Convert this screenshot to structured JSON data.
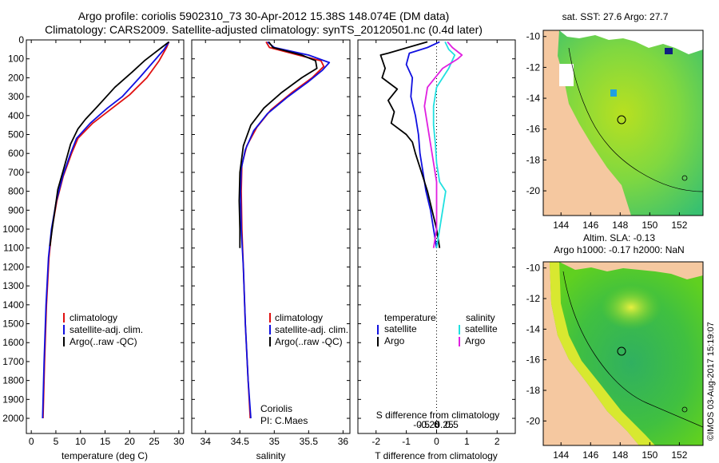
{
  "header": {
    "line1": "Argo profile: coriolis 5902310_73 30-Apr-2012 15.38S 148.074E (DM data)",
    "line2": "Climatology: CARS2009. Satellite-adjusted climatology: synTS_20120501.nc (0.4d later)"
  },
  "colors": {
    "clim": "#e01010",
    "sat": "#1010e0",
    "argo": "#000000",
    "sat_sal": "#20e0e0",
    "argo_sal": "#e020e0",
    "land": "#f5c8a0"
  },
  "depth_axis": {
    "ticks": [
      "0",
      "100",
      "200",
      "300",
      "400",
      "500",
      "600",
      "700",
      "800",
      "900",
      "1000",
      "1100",
      "1200",
      "1300",
      "1400",
      "1500",
      "1600",
      "1700",
      "1800",
      "1900",
      "2000"
    ]
  },
  "chart_data": [
    {
      "type": "line",
      "id": "temperature",
      "xlabel": "temperature (deg C)",
      "ylabel": "depth",
      "xlim": [
        -1,
        31
      ],
      "ylim": [
        0,
        2080
      ],
      "xticks": [
        "0",
        "5",
        "10",
        "15",
        "20",
        "25",
        "30"
      ],
      "legend": [
        "climatology",
        "satellite-adj. clim.",
        "Argo(..raw -QC)"
      ],
      "series": [
        {
          "name": "climatology",
          "color": "#e01010",
          "points": [
            [
              28,
              10
            ],
            [
              27.5,
              40
            ],
            [
              26,
              110
            ],
            [
              23.5,
              200
            ],
            [
              20,
              290
            ],
            [
              16.5,
              360
            ],
            [
              12.5,
              440
            ],
            [
              9.5,
              520
            ],
            [
              8.2,
              600
            ],
            [
              6.5,
              720
            ],
            [
              5.2,
              850
            ],
            [
              4.2,
              1000
            ],
            [
              3.6,
              1150
            ],
            [
              3.1,
              1400
            ],
            [
              2.7,
              1700
            ],
            [
              2.4,
              2000
            ]
          ]
        },
        {
          "name": "satellite-adj. clim.",
          "color": "#1010e0",
          "points": [
            [
              28,
              10
            ],
            [
              27,
              50
            ],
            [
              25,
              110
            ],
            [
              22,
              200
            ],
            [
              18.5,
              300
            ],
            [
              15.5,
              360
            ],
            [
              12,
              440
            ],
            [
              9.2,
              520
            ],
            [
              8,
              600
            ],
            [
              6.4,
              720
            ],
            [
              5.1,
              850
            ],
            [
              4.1,
              1000
            ],
            [
              3.5,
              1150
            ],
            [
              3.0,
              1400
            ],
            [
              2.6,
              1700
            ],
            [
              2.3,
              2000
            ]
          ]
        },
        {
          "name": "Argo(..raw -QC)",
          "color": "#000000",
          "points": [
            [
              28,
              10
            ],
            [
              26.5,
              40
            ],
            [
              25,
              70
            ],
            [
              23,
              110
            ],
            [
              20.5,
              170
            ],
            [
              17,
              250
            ],
            [
              13.5,
              350
            ],
            [
              11,
              420
            ],
            [
              9.5,
              470
            ],
            [
              8,
              550
            ],
            [
              6.6,
              680
            ],
            [
              5.4,
              790
            ],
            [
              4.8,
              900
            ],
            [
              4.2,
              1010
            ],
            [
              3.8,
              1090
            ]
          ]
        }
      ]
    },
    {
      "type": "line",
      "id": "salinity",
      "xlabel": "salinity",
      "ylabel": "depth",
      "xlim": [
        33.8,
        36.1
      ],
      "ylim": [
        0,
        2080
      ],
      "xticks": [
        "34",
        "34.5",
        "35",
        "35.5",
        "36"
      ],
      "legend": [
        "climatology",
        "satellite-adj. clim.",
        "Argo(..raw -QC)"
      ],
      "annotation": [
        "Coriolis",
        "PI: C.Maes"
      ],
      "series": [
        {
          "name": "climatology",
          "color": "#e01010",
          "points": [
            [
              34.88,
              10
            ],
            [
              34.93,
              40
            ],
            [
              35.35,
              80
            ],
            [
              35.68,
              110
            ],
            [
              35.72,
              140
            ],
            [
              35.55,
              200
            ],
            [
              35.25,
              280
            ],
            [
              34.95,
              370
            ],
            [
              34.75,
              460
            ],
            [
              34.6,
              560
            ],
            [
              34.53,
              660
            ],
            [
              34.52,
              800
            ],
            [
              34.53,
              1000
            ],
            [
              34.55,
              1200
            ],
            [
              34.58,
              1500
            ],
            [
              34.62,
              1800
            ],
            [
              34.65,
              2000
            ]
          ]
        },
        {
          "name": "satellite-adj. clim.",
          "color": "#1010e0",
          "points": [
            [
              34.9,
              10
            ],
            [
              35.0,
              40
            ],
            [
              35.5,
              80
            ],
            [
              35.8,
              120
            ],
            [
              35.7,
              160
            ],
            [
              35.5,
              220
            ],
            [
              35.2,
              300
            ],
            [
              34.9,
              390
            ],
            [
              34.7,
              480
            ],
            [
              34.58,
              580
            ],
            [
              34.52,
              680
            ],
            [
              34.51,
              800
            ],
            [
              34.52,
              1000
            ],
            [
              34.55,
              1200
            ],
            [
              34.58,
              1500
            ],
            [
              34.62,
              1800
            ],
            [
              34.66,
              2000
            ]
          ]
        },
        {
          "name": "Argo(..raw -QC)",
          "color": "#000000",
          "points": [
            [
              34.92,
              10
            ],
            [
              34.98,
              40
            ],
            [
              35.4,
              80
            ],
            [
              35.6,
              110
            ],
            [
              35.62,
              150
            ],
            [
              35.4,
              200
            ],
            [
              35.1,
              280
            ],
            [
              34.85,
              360
            ],
            [
              34.66,
              450
            ],
            [
              34.55,
              560
            ],
            [
              34.5,
              700
            ],
            [
              34.49,
              850
            ],
            [
              34.5,
              1000
            ],
            [
              34.5,
              1100
            ]
          ]
        }
      ]
    },
    {
      "type": "line",
      "id": "difference",
      "xlabel": "T difference from climatology",
      "xlabel2": "S difference from climatology",
      "ylabel": "depth",
      "xlim": [
        -2.6,
        2.6
      ],
      "ylim": [
        0,
        2080
      ],
      "xticks": [
        "-2",
        "-1",
        "0",
        "1",
        "2"
      ],
      "xticks2": [
        "-0.5",
        "-0.25",
        "0",
        "0.25",
        "0.5"
      ],
      "legend": {
        "temperature_title": "temperature",
        "salinity_title": "salinity",
        "satellite": "satellite",
        "argo": "Argo"
      },
      "series": [
        {
          "name": "temperature satellite",
          "color": "#1010e0",
          "points": [
            [
              0.1,
              10
            ],
            [
              -0.3,
              40
            ],
            [
              -0.9,
              70
            ],
            [
              -1.0,
              130
            ],
            [
              -0.8,
              200
            ],
            [
              -0.85,
              300
            ],
            [
              -0.7,
              400
            ],
            [
              -0.6,
              500
            ],
            [
              -0.55,
              600
            ],
            [
              -0.45,
              700
            ],
            [
              -0.35,
              800
            ],
            [
              -0.2,
              900
            ],
            [
              -0.1,
              1000
            ],
            [
              0.0,
              1100
            ]
          ]
        },
        {
          "name": "temperature Argo",
          "color": "#000000",
          "points": [
            [
              -0.3,
              10
            ],
            [
              -1.6,
              70
            ],
            [
              -1.85,
              80
            ],
            [
              -1.7,
              150
            ],
            [
              -1.8,
              200
            ],
            [
              -1.3,
              260
            ],
            [
              -1.6,
              320
            ],
            [
              -1.4,
              380
            ],
            [
              -1.5,
              440
            ],
            [
              -1.0,
              500
            ],
            [
              -0.8,
              540
            ],
            [
              -0.7,
              600
            ],
            [
              -0.5,
              700
            ],
            [
              -0.3,
              800
            ],
            [
              -0.15,
              900
            ],
            [
              0.0,
              1000
            ],
            [
              0.1,
              1100
            ]
          ]
        },
        {
          "name": "salinity satellite",
          "color": "#20e0e0",
          "points": [
            [
              0.14,
              10
            ],
            [
              0.2,
              50
            ],
            [
              0.3,
              80
            ],
            [
              0.2,
              150
            ],
            [
              0.0,
              250
            ],
            [
              -0.05,
              350
            ],
            [
              -0.05,
              450
            ],
            [
              -0.02,
              550
            ],
            [
              0.0,
              650
            ],
            [
              0.05,
              750
            ],
            [
              0.15,
              800
            ],
            [
              0.1,
              900
            ],
            [
              0.05,
              1000
            ],
            [
              0.0,
              1100
            ]
          ]
        },
        {
          "name": "salinity Argo",
          "color": "#e020e0",
          "points": [
            [
              0.18,
              10
            ],
            [
              0.26,
              40
            ],
            [
              0.42,
              80
            ],
            [
              0.35,
              100
            ],
            [
              0.1,
              150
            ],
            [
              -0.15,
              250
            ],
            [
              -0.2,
              350
            ],
            [
              -0.15,
              450
            ],
            [
              -0.1,
              550
            ],
            [
              -0.05,
              650
            ],
            [
              0.0,
              750
            ],
            [
              0.0,
              900
            ],
            [
              0.0,
              1000
            ],
            [
              -0.05,
              1100
            ]
          ]
        }
      ]
    }
  ],
  "maps": {
    "sst_title": "sat. SST: 27.6 Argo: 27.7",
    "sla_title1": "Altim. SLA: -0.13",
    "sla_title2": "Argo h1000: -0.17 h2000: NaN",
    "lon_ticks": [
      "144",
      "146",
      "148",
      "150",
      "152"
    ],
    "lat_ticks": [
      "-10",
      "-12",
      "-14",
      "-16",
      "-18",
      "-20"
    ]
  },
  "credit": "©IMOS 03-Aug-2017 15:19:07"
}
